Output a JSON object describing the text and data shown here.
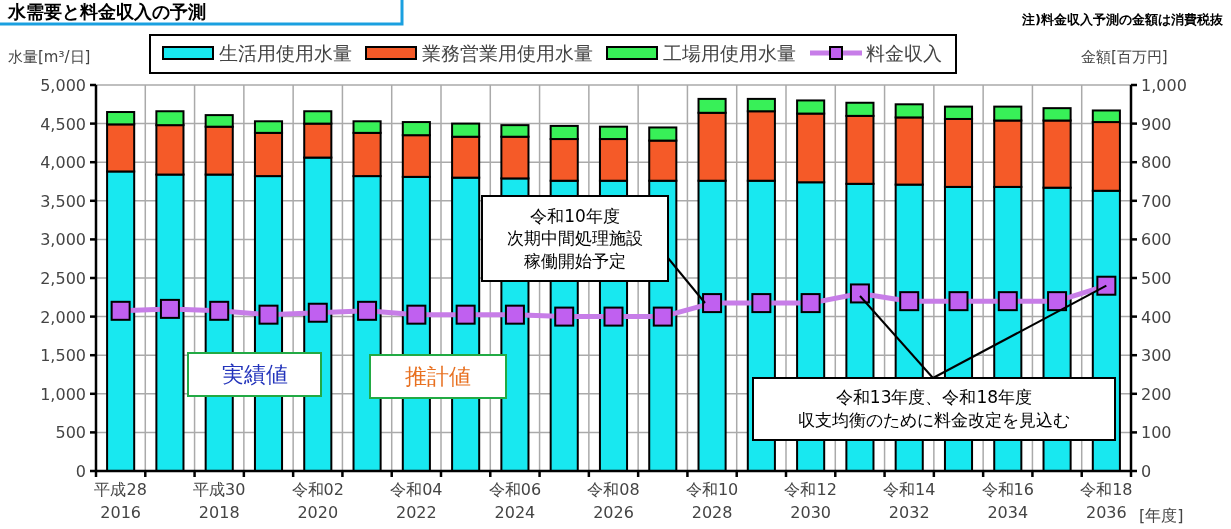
{
  "chart_data": {
    "type": "bar",
    "title": "水需要と料金収入の予測",
    "ylabel": "水量[m³/日]",
    "y2label": "金額[百万円]",
    "xlabel": "[年度]",
    "categories": [
      "平成28\n2016",
      null,
      "平成30\n2018",
      null,
      "令和02\n2020",
      null,
      "令和04\n2022",
      null,
      "令和06\n2024",
      null,
      "令和08\n2026",
      null,
      "令和10\n2028",
      null,
      "令和12\n2030",
      null,
      "令和14\n2032",
      null,
      "令和16\n2034",
      null,
      "令和18\n2036"
    ],
    "stacked": true,
    "series": [
      {
        "name": "生活用使用水量",
        "color": "#18e8f0",
        "values": [
          3880,
          3840,
          3840,
          3820,
          4060,
          3820,
          3810,
          3800,
          3790,
          3760,
          3760,
          3760,
          3760,
          3760,
          3740,
          3720,
          3710,
          3680,
          3680,
          3670,
          3630
        ]
      },
      {
        "name": "業務営業用使用水量",
        "color": "#f55a28",
        "values": [
          610,
          640,
          620,
          560,
          440,
          560,
          540,
          530,
          540,
          540,
          540,
          520,
          880,
          900,
          890,
          880,
          870,
          880,
          860,
          870,
          890
        ]
      },
      {
        "name": "工場用使用水量",
        "color": "#38f058",
        "values": [
          160,
          180,
          150,
          150,
          160,
          150,
          170,
          170,
          150,
          170,
          160,
          170,
          180,
          160,
          170,
          170,
          170,
          160,
          180,
          160,
          150
        ]
      },
      {
        "name": "料金収入",
        "type": "line",
        "axis": "y2",
        "color": "#c060f0",
        "values": [
          415,
          420,
          415,
          405,
          410,
          415,
          405,
          405,
          405,
          400,
          400,
          400,
          435,
          435,
          435,
          460,
          440,
          440,
          440,
          440,
          480
        ]
      }
    ],
    "ylim": [
      0,
      5000
    ],
    "yticks": [
      0,
      500,
      {
        "value": 1000,
        "label": "1,000"
      },
      {
        "value": 1500,
        "label": "1,500"
      },
      {
        "value": 2000,
        "label": "2,000"
      },
      {
        "value": 2500,
        "label": "2,500"
      },
      {
        "value": 3000,
        "label": "3,000"
      },
      {
        "value": 3500,
        "label": "3,500"
      },
      {
        "value": 4000,
        "label": "4,000"
      },
      {
        "value": 4500,
        "label": "4,500"
      },
      {
        "value": 5000,
        "label": "5,000"
      }
    ],
    "y2lim": [
      0,
      1000
    ],
    "y2ticks": [
      0,
      100,
      200,
      300,
      400,
      500,
      600,
      700,
      800,
      900,
      {
        "value": 1000,
        "label": "1,000"
      }
    ],
    "grid": true,
    "legend": "top",
    "marker": "square",
    "annotations": [
      "注)料金収入予測の金額は消費税抜",
      "実績値",
      "推計値",
      "令和10年度",
      "次期中間処理施設稼働開始予定",
      {
        "text": "令和13年度、令和18年度",
        "x": "令和18\n2036",
        "y": 2400
      },
      "収支均衡のために料金改定を見込む"
    ]
  }
}
